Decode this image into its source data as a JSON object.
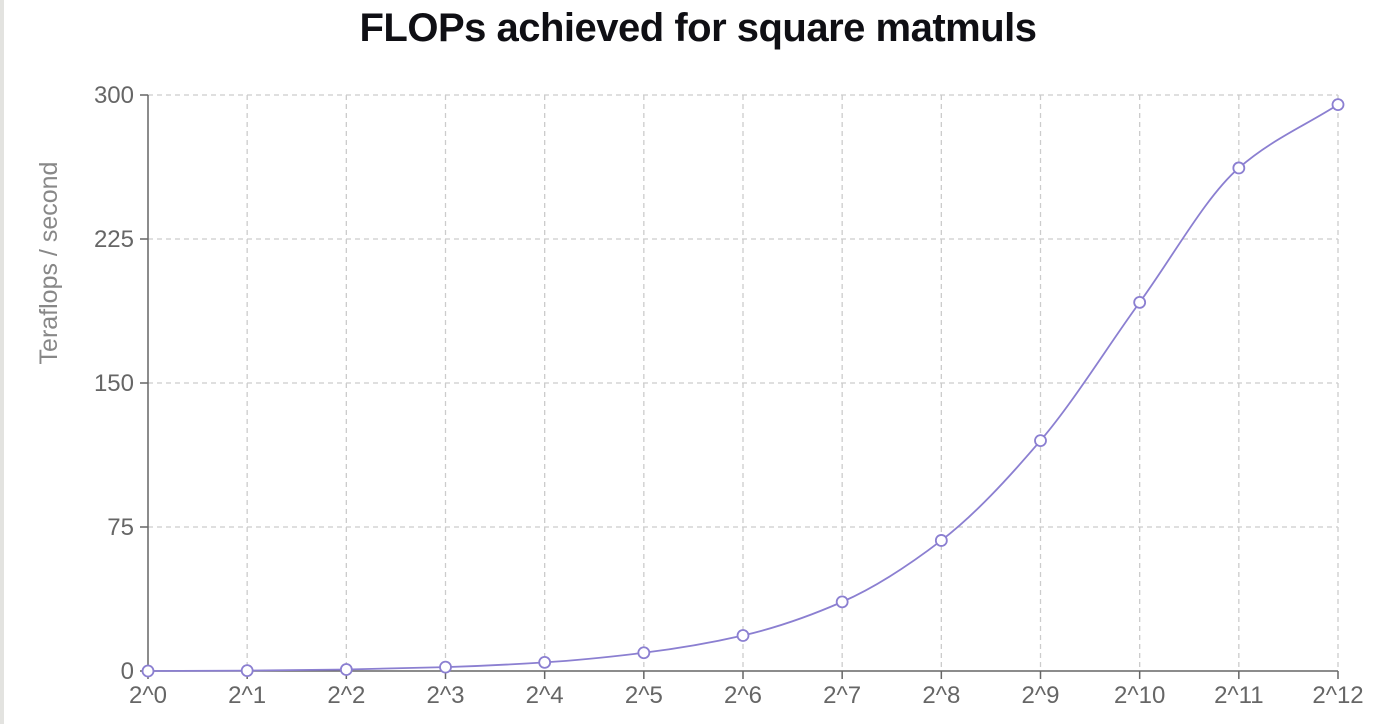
{
  "chart_data": {
    "type": "line",
    "title": "FLOPs achieved for square matmuls",
    "xlabel": "",
    "ylabel": "Teraflops / second",
    "categories": [
      "2^0",
      "2^1",
      "2^2",
      "2^3",
      "2^4",
      "2^5",
      "2^6",
      "2^7",
      "2^8",
      "2^9",
      "2^10",
      "2^11",
      "2^12"
    ],
    "series": [
      {
        "values": [
          0.0,
          0.2,
          0.8,
          2.0,
          4.5,
          9.5,
          18.5,
          36,
          68,
          120,
          192,
          262,
          295
        ]
      }
    ],
    "ylim": [
      0,
      300
    ],
    "yticks": [
      0,
      75,
      150,
      225,
      300
    ],
    "grid": true,
    "colors": {
      "line": "#8b7fd1",
      "marker_fill": "#ffffff",
      "grid": "#cccccc",
      "axis": "#666666"
    }
  }
}
